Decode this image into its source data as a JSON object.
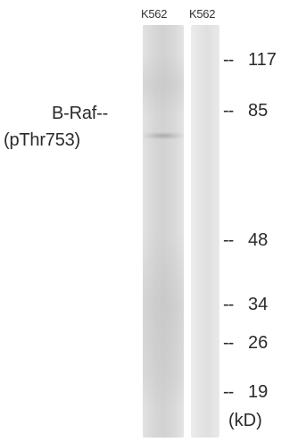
{
  "lanes": [
    {
      "label": "K562"
    },
    {
      "label": "K562"
    }
  ],
  "protein": {
    "line1": "B-Raf--",
    "line2": "(pThr753)"
  },
  "markers": [
    {
      "dash": "--",
      "value": "117"
    },
    {
      "dash": "--",
      "value": "85"
    },
    {
      "dash": "--",
      "value": "48"
    },
    {
      "dash": "--",
      "value": "34"
    },
    {
      "dash": "--",
      "value": "26"
    },
    {
      "dash": "--",
      "value": "19"
    }
  ],
  "unit": "(kD)"
}
